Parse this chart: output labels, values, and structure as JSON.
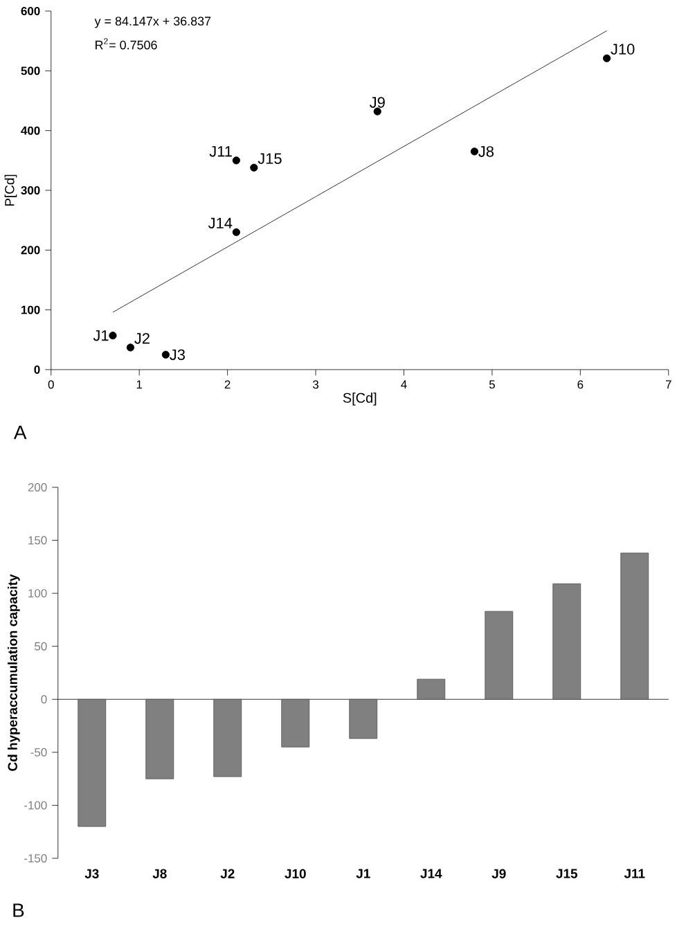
{
  "chart_data": [
    {
      "type": "scatter",
      "xlabel": "S[Cd]",
      "ylabel": "P[Cd]",
      "xlim": [
        0,
        7
      ],
      "ylim": [
        0,
        600
      ],
      "xticks": [
        0,
        1,
        2,
        3,
        4,
        5,
        6,
        7
      ],
      "yticks": [
        0,
        100,
        200,
        300,
        400,
        500,
        600
      ],
      "marker": "circle",
      "series": [
        {
          "type": "scatter",
          "color": "#000000",
          "x": [
            0.7,
            0.9,
            1.3,
            2.1,
            2.1,
            2.3,
            3.7,
            4.8,
            6.3
          ],
          "values": [
            57,
            37,
            25,
            230,
            350,
            338,
            432,
            365,
            521
          ]
        },
        {
          "type": "line",
          "marker": "none",
          "color": "#000000",
          "x": [
            0.7,
            6.3
          ],
          "values": [
            96,
            567
          ]
        }
      ],
      "annotations": [
        "y = 84.147x + 36.837",
        "R$^{2}$= 0.7506",
        "A",
        {
          "text": "J1",
          "x": 0.7,
          "y": 57
        },
        {
          "text": "J2",
          "x": 0.9,
          "y": 37
        },
        {
          "text": "J3",
          "x": 1.3,
          "y": 25
        },
        {
          "text": "J14",
          "x": 2.1,
          "y": 230
        },
        {
          "text": "J11",
          "x": 2.1,
          "y": 350
        },
        {
          "text": "J15",
          "x": 2.3,
          "y": 338
        },
        {
          "text": "J9",
          "x": 3.7,
          "y": 432
        },
        {
          "text": "J8",
          "x": 4.8,
          "y": 365
        },
        {
          "text": "J10",
          "x": 6.3,
          "y": 521
        }
      ]
    },
    {
      "type": "bar",
      "ylabel": "Cd hyperaccumulation capacity",
      "categories": [
        "J3",
        "J8",
        "J2",
        "J10",
        "J1",
        "J14",
        "J9",
        "J15",
        "J11"
      ],
      "values": [
        -120,
        -75,
        -73,
        -45,
        -37,
        19,
        83,
        109,
        138
      ],
      "color": "#808080",
      "ylim": [
        -150,
        200
      ],
      "yticks": [
        -150,
        -100,
        -50,
        0,
        50,
        100,
        150,
        200
      ],
      "annotations": [
        "B"
      ]
    }
  ]
}
